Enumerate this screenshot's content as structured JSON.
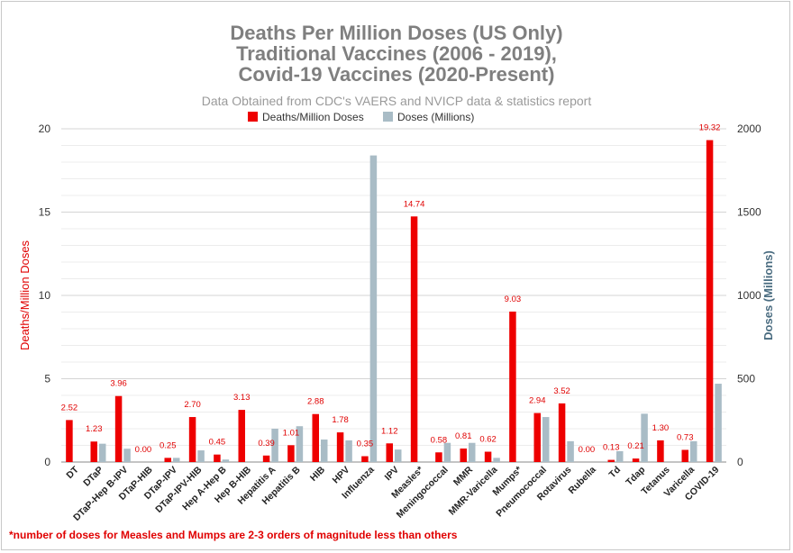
{
  "chart_data": {
    "type": "bar",
    "title_lines": [
      "Deaths Per Million Doses (US Only)",
      "Traditional Vaccines (2006 - 2019),",
      "Covid-19 Vaccines (2020-Present)"
    ],
    "subtitle": "Data Obtained from CDC's VAERS and NVICP data & statistics report",
    "categories": [
      "DT",
      "DTaP",
      "DTaP-Hep B-IPV",
      "DTaP-HIB",
      "DTaP-IPV",
      "DTaP-IPV-HIB",
      "Hep A-Hep B",
      "Hep B-HIB",
      "Hepatitis A",
      "Hepatitis B",
      "HIB",
      "HPV",
      "Influenza",
      "IPV",
      "Measles*",
      "Meningococcal",
      "MMR",
      "MMR-Varicella",
      "Mumps*",
      "Pneumococcal",
      "Rotavirus",
      "Rubella",
      "Td",
      "Tdap",
      "Tetanus",
      "Varicella",
      "COVID-19"
    ],
    "series": [
      {
        "name": "Deaths/Million Doses",
        "axis": "left",
        "color": "#ee0000",
        "values": [
          2.52,
          1.23,
          3.96,
          0.0,
          0.25,
          2.7,
          0.45,
          3.13,
          0.39,
          1.01,
          2.88,
          1.78,
          0.35,
          1.12,
          14.74,
          0.58,
          0.81,
          0.62,
          9.03,
          2.94,
          3.52,
          0.0,
          0.13,
          0.21,
          1.3,
          0.73,
          19.32
        ],
        "labels": [
          "2.52",
          "1.23",
          "3.96",
          "0.00",
          "0.25",
          "2.70",
          "0.45",
          "3.13",
          "0.39",
          "1.01",
          "2.88",
          "1.78",
          "0.35",
          "1.12",
          "14.74",
          "0.58",
          "0.81",
          "0.62",
          "9.03",
          "2.94",
          "3.52",
          "0.00",
          "0.13",
          "0.21",
          "1.30",
          "0.73",
          "19.32"
        ]
      },
      {
        "name": "Doses (Millions)",
        "axis": "right",
        "color": "#a9bcc6",
        "values": [
          0,
          110,
          80,
          0,
          25,
          70,
          15,
          0,
          200,
          215,
          135,
          130,
          1840,
          75,
          0,
          115,
          115,
          25,
          0,
          270,
          125,
          0,
          65,
          290,
          0,
          125,
          470
        ]
      }
    ],
    "y_left": {
      "label": "Deaths/Million Doses",
      "range": [
        0,
        20
      ],
      "ticks": [
        "0",
        "5",
        "10",
        "15",
        "20"
      ]
    },
    "y_right": {
      "label": "Doses (Millions)",
      "range": [
        0,
        2000
      ],
      "ticks": [
        "0",
        "500",
        "1000",
        "1500",
        "2000"
      ]
    },
    "legend": {
      "position": "top-center"
    },
    "grid": true,
    "footnote": "*number of doses for Measles and Mumps are 2-3 orders of magnitude less than others"
  }
}
